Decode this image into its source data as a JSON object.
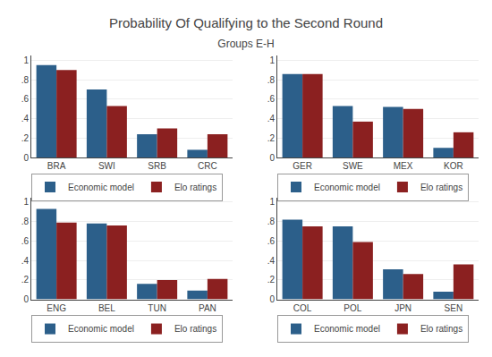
{
  "title": "Probability Of Qualifying to the Second Round",
  "subtitle": "Groups E-H",
  "chart_data": [
    {
      "type": "bar",
      "categories": [
        "BRA",
        "SWI",
        "SRB",
        "CRC"
      ],
      "series": [
        {
          "name": "Economic model",
          "color": "#2c5f8a",
          "values": [
            0.95,
            0.7,
            0.24,
            0.08
          ]
        },
        {
          "name": "Elo ratings",
          "color": "#8b2020",
          "values": [
            0.9,
            0.53,
            0.3,
            0.24
          ]
        }
      ],
      "ylim": [
        0,
        1.05
      ],
      "yticks": [
        0,
        {
          "value": 0.2,
          "label": ".2"
        },
        {
          "value": 0.4,
          "label": ".4"
        },
        {
          "value": 0.6,
          "label": ".6"
        },
        {
          "value": 0.8,
          "label": ".8"
        },
        1
      ],
      "grid": true,
      "legend": "bottom"
    },
    {
      "type": "bar",
      "categories": [
        "GER",
        "SWE",
        "MEX",
        "KOR"
      ],
      "series": [
        {
          "name": "Economic model",
          "color": "#2c5f8a",
          "values": [
            0.86,
            0.53,
            0.52,
            0.1
          ]
        },
        {
          "name": "Elo ratings",
          "color": "#8b2020",
          "values": [
            0.86,
            0.37,
            0.5,
            0.26
          ]
        }
      ],
      "ylim": [
        0,
        1.05
      ],
      "yticks": [
        0,
        {
          "value": 0.2,
          "label": ".2"
        },
        {
          "value": 0.4,
          "label": ".4"
        },
        {
          "value": 0.6,
          "label": ".6"
        },
        {
          "value": 0.8,
          "label": ".8"
        },
        1
      ],
      "grid": true,
      "legend": "bottom"
    },
    {
      "type": "bar",
      "categories": [
        "ENG",
        "BEL",
        "TUN",
        "PAN"
      ],
      "series": [
        {
          "name": "Economic model",
          "color": "#2c5f8a",
          "values": [
            0.93,
            0.78,
            0.16,
            0.09
          ]
        },
        {
          "name": "Elo ratings",
          "color": "#8b2020",
          "values": [
            0.79,
            0.76,
            0.2,
            0.21
          ]
        }
      ],
      "ylim": [
        0,
        1.05
      ],
      "yticks": [
        0,
        {
          "value": 0.2,
          "label": ".2"
        },
        {
          "value": 0.4,
          "label": ".4"
        },
        {
          "value": 0.6,
          "label": ".6"
        },
        {
          "value": 0.8,
          "label": ".8"
        },
        1
      ],
      "grid": true,
      "legend": "bottom"
    },
    {
      "type": "bar",
      "categories": [
        "COL",
        "POL",
        "JPN",
        "SEN"
      ],
      "series": [
        {
          "name": "Economic model",
          "color": "#2c5f8a",
          "values": [
            0.82,
            0.75,
            0.31,
            0.08
          ]
        },
        {
          "name": "Elo ratings",
          "color": "#8b2020",
          "values": [
            0.75,
            0.59,
            0.26,
            0.36
          ]
        }
      ],
      "ylim": [
        0,
        1.05
      ],
      "yticks": [
        0,
        {
          "value": 0.2,
          "label": ".2"
        },
        {
          "value": 0.4,
          "label": ".4"
        },
        {
          "value": 0.6,
          "label": ".6"
        },
        {
          "value": 0.8,
          "label": ".8"
        },
        1
      ],
      "grid": true,
      "legend": "bottom"
    }
  ]
}
